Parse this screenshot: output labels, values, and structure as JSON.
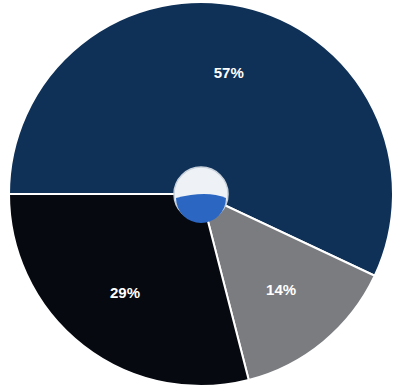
{
  "chart_data": {
    "type": "pie",
    "categories": [
      null,
      null,
      null
    ],
    "values": [
      57,
      14,
      29
    ],
    "value_labels": [
      "57%",
      "14%",
      "29%"
    ],
    "colors": [
      "#0f3157",
      "#7a7c80",
      "#06090f"
    ],
    "data_labels": true
  }
}
